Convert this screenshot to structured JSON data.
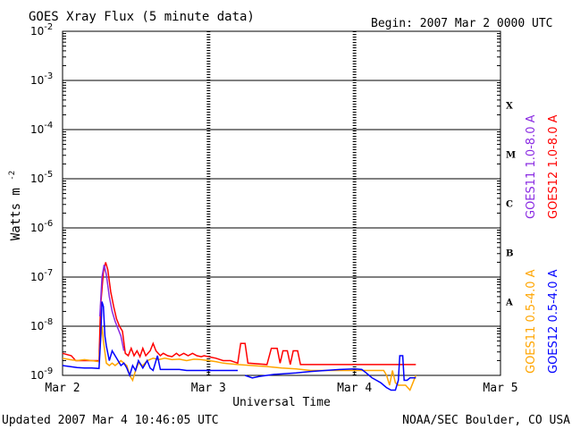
{
  "chart_data": {
    "type": "line",
    "title": "GOES Xray Flux (5 minute data)",
    "begin_label": "Begin:  2007 Mar 2 0000 UTC",
    "xlabel": "Universal Time",
    "ylabel": "Watts m",
    "ylabel_sup": "-2",
    "x_ticks": [
      "Mar 2",
      "Mar 3",
      "Mar 4",
      "Mar 5"
    ],
    "xlim_days": [
      0,
      3
    ],
    "ylim_log10": [
      -9,
      -2
    ],
    "y_ticks": [
      {
        "base": "10",
        "exp": "-2"
      },
      {
        "base": "10",
        "exp": "-3"
      },
      {
        "base": "10",
        "exp": "-4"
      },
      {
        "base": "10",
        "exp": "-5"
      },
      {
        "base": "10",
        "exp": "-6"
      },
      {
        "base": "10",
        "exp": "-7"
      },
      {
        "base": "10",
        "exp": "-8"
      },
      {
        "base": "10",
        "exp": "-9"
      }
    ],
    "flare_classes": [
      {
        "label": "X",
        "log10": -3.5
      },
      {
        "label": "M",
        "log10": -4.5
      },
      {
        "label": "C",
        "log10": -5.5
      },
      {
        "label": "B",
        "log10": -6.5
      },
      {
        "label": "A",
        "log10": -7.5
      }
    ],
    "legend": [
      {
        "name": "GOES11 1.0-8.0 A",
        "color": "#8a2be2"
      },
      {
        "name": "GOES12 1.0-8.0 A",
        "color": "#ff0000"
      },
      {
        "name": "GOES11 0.5-4.0 A",
        "color": "#ffa500"
      },
      {
        "name": "GOES12 0.5-4.0 A",
        "color": "#0000ff"
      }
    ],
    "series": [
      {
        "name": "GOES12 1.0-8.0 A",
        "color": "#ff0000",
        "points": [
          [
            0.0,
            -8.55
          ],
          [
            0.06,
            -8.6
          ],
          [
            0.09,
            -8.7
          ],
          [
            0.12,
            -8.7
          ],
          [
            0.25,
            -8.7
          ],
          [
            0.26,
            -7.6
          ],
          [
            0.28,
            -6.9
          ],
          [
            0.295,
            -6.7
          ],
          [
            0.31,
            -6.85
          ],
          [
            0.33,
            -7.3
          ],
          [
            0.35,
            -7.6
          ],
          [
            0.37,
            -7.85
          ],
          [
            0.39,
            -8.0
          ],
          [
            0.41,
            -8.1
          ],
          [
            0.43,
            -8.55
          ],
          [
            0.45,
            -8.6
          ],
          [
            0.47,
            -8.45
          ],
          [
            0.49,
            -8.6
          ],
          [
            0.51,
            -8.5
          ],
          [
            0.53,
            -8.62
          ],
          [
            0.55,
            -8.45
          ],
          [
            0.57,
            -8.6
          ],
          [
            0.6,
            -8.5
          ],
          [
            0.62,
            -8.35
          ],
          [
            0.64,
            -8.5
          ],
          [
            0.67,
            -8.6
          ],
          [
            0.69,
            -8.55
          ],
          [
            0.72,
            -8.6
          ],
          [
            0.75,
            -8.62
          ],
          [
            0.78,
            -8.55
          ],
          [
            0.8,
            -8.6
          ],
          [
            0.83,
            -8.55
          ],
          [
            0.86,
            -8.6
          ],
          [
            0.89,
            -8.55
          ],
          [
            0.92,
            -8.6
          ],
          [
            0.95,
            -8.62
          ],
          [
            0.97,
            -8.6
          ],
          [
            1.0,
            -8.62
          ],
          [
            1.05,
            -8.65
          ],
          [
            1.1,
            -8.7
          ],
          [
            1.15,
            -8.7
          ],
          [
            1.2,
            -8.75
          ],
          [
            1.22,
            -8.35
          ],
          [
            1.25,
            -8.35
          ],
          [
            1.27,
            -8.75
          ],
          [
            1.4,
            -8.78
          ],
          [
            1.43,
            -8.45
          ],
          [
            1.47,
            -8.45
          ],
          [
            1.49,
            -8.75
          ],
          [
            1.51,
            -8.5
          ],
          [
            1.54,
            -8.5
          ],
          [
            1.56,
            -8.78
          ],
          [
            1.58,
            -8.5
          ],
          [
            1.61,
            -8.5
          ],
          [
            1.63,
            -8.78
          ],
          [
            1.8,
            -8.78
          ],
          [
            2.0,
            -8.78
          ],
          [
            2.2,
            -8.78
          ],
          [
            2.42,
            -8.78
          ]
        ]
      },
      {
        "name": "GOES11 1.0-8.0 A",
        "color": "#8a2be2",
        "points": [
          [
            0.255,
            -7.8
          ],
          [
            0.27,
            -7.0
          ],
          [
            0.285,
            -6.75
          ],
          [
            0.3,
            -6.95
          ],
          [
            0.32,
            -7.4
          ],
          [
            0.34,
            -7.7
          ],
          [
            0.36,
            -7.9
          ],
          [
            0.38,
            -8.05
          ],
          [
            0.4,
            -8.2
          ],
          [
            0.42,
            -8.5
          ]
        ]
      },
      {
        "name": "GOES11 0.5-4.0 A",
        "color": "#ffa500",
        "points": [
          [
            0.0,
            -8.65
          ],
          [
            0.05,
            -8.68
          ],
          [
            0.1,
            -8.7
          ],
          [
            0.15,
            -8.68
          ],
          [
            0.2,
            -8.7
          ],
          [
            0.25,
            -8.72
          ],
          [
            0.26,
            -8.3
          ],
          [
            0.27,
            -8.0
          ],
          [
            0.28,
            -8.3
          ],
          [
            0.3,
            -8.75
          ],
          [
            0.32,
            -8.8
          ],
          [
            0.34,
            -8.75
          ],
          [
            0.36,
            -8.8
          ],
          [
            0.38,
            -8.75
          ],
          [
            0.4,
            -8.7
          ],
          [
            0.42,
            -8.75
          ],
          [
            0.44,
            -8.8
          ],
          [
            0.46,
            -9.0
          ],
          [
            0.48,
            -9.1
          ],
          [
            0.5,
            -8.9
          ],
          [
            0.52,
            -8.75
          ],
          [
            0.55,
            -8.8
          ],
          [
            0.58,
            -8.7
          ],
          [
            0.62,
            -8.65
          ],
          [
            0.66,
            -8.68
          ],
          [
            0.7,
            -8.65
          ],
          [
            0.75,
            -8.68
          ],
          [
            0.8,
            -8.67
          ],
          [
            0.85,
            -8.7
          ],
          [
            0.9,
            -8.67
          ],
          [
            0.95,
            -8.68
          ],
          [
            1.0,
            -8.7
          ],
          [
            1.05,
            -8.72
          ],
          [
            1.1,
            -8.75
          ],
          [
            1.2,
            -8.78
          ],
          [
            1.3,
            -8.8
          ],
          [
            1.4,
            -8.82
          ],
          [
            1.5,
            -8.85
          ],
          [
            1.6,
            -8.87
          ],
          [
            1.7,
            -8.9
          ],
          [
            1.8,
            -8.9
          ],
          [
            1.9,
            -8.9
          ],
          [
            2.0,
            -8.9
          ],
          [
            2.1,
            -8.9
          ],
          [
            2.2,
            -8.9
          ],
          [
            2.22,
            -9.0
          ],
          [
            2.24,
            -9.2
          ],
          [
            2.26,
            -8.9
          ],
          [
            2.28,
            -9.15
          ],
          [
            2.3,
            -9.2
          ],
          [
            2.35,
            -9.2
          ],
          [
            2.38,
            -9.3
          ],
          [
            2.4,
            -9.15
          ],
          [
            2.42,
            -9.0
          ]
        ]
      },
      {
        "name": "GOES12 0.5-4.0 A",
        "color": "#0000ff",
        "points": [
          [
            0.0,
            -8.8
          ],
          [
            0.05,
            -8.82
          ],
          [
            0.1,
            -8.84
          ],
          [
            0.15,
            -8.85
          ],
          [
            0.2,
            -8.85
          ],
          [
            0.25,
            -8.86
          ],
          [
            0.26,
            -8.3
          ],
          [
            0.27,
            -7.5
          ],
          [
            0.28,
            -7.6
          ],
          [
            0.29,
            -8.2
          ],
          [
            0.3,
            -8.4
          ],
          [
            0.32,
            -8.7
          ],
          [
            0.34,
            -8.5
          ],
          [
            0.36,
            -8.6
          ],
          [
            0.38,
            -8.7
          ],
          [
            0.4,
            -8.8
          ],
          [
            0.42,
            -8.75
          ],
          [
            0.44,
            -8.85
          ],
          [
            0.46,
            -9.0
          ],
          [
            0.48,
            -8.8
          ],
          [
            0.5,
            -8.9
          ],
          [
            0.52,
            -8.7
          ],
          [
            0.55,
            -8.85
          ],
          [
            0.58,
            -8.7
          ],
          [
            0.6,
            -8.85
          ],
          [
            0.62,
            -8.9
          ],
          [
            0.65,
            -8.6
          ],
          [
            0.67,
            -8.88
          ],
          [
            0.7,
            -8.88
          ],
          [
            0.75,
            -8.88
          ],
          [
            0.8,
            -8.88
          ],
          [
            0.85,
            -8.9
          ],
          [
            0.9,
            -8.9
          ],
          [
            0.95,
            -8.9
          ],
          [
            1.0,
            -8.9
          ],
          [
            1.05,
            -8.9
          ],
          [
            1.1,
            -8.9
          ],
          [
            1.15,
            -8.9
          ],
          [
            1.2,
            -8.9
          ]
        ]
      },
      {
        "name": "GOES12 0.5-4.0 A",
        "color": "#0000ff",
        "points": [
          [
            1.25,
            -9.0
          ],
          [
            1.3,
            -9.05
          ],
          [
            1.35,
            -9.02
          ],
          [
            1.4,
            -9.0
          ],
          [
            1.45,
            -8.98
          ],
          [
            1.5,
            -8.97
          ],
          [
            1.6,
            -8.95
          ],
          [
            1.7,
            -8.92
          ],
          [
            1.8,
            -8.9
          ],
          [
            1.9,
            -8.88
          ],
          [
            2.0,
            -8.87
          ],
          [
            2.05,
            -8.88
          ],
          [
            2.08,
            -8.95
          ],
          [
            2.1,
            -9.0
          ],
          [
            2.12,
            -9.05
          ],
          [
            2.15,
            -9.1
          ],
          [
            2.18,
            -9.15
          ],
          [
            2.2,
            -9.2
          ],
          [
            2.22,
            -9.25
          ],
          [
            2.25,
            -9.3
          ],
          [
            2.28,
            -9.3
          ],
          [
            2.3,
            -9.1
          ],
          [
            2.31,
            -8.6
          ],
          [
            2.33,
            -8.6
          ],
          [
            2.34,
            -9.1
          ],
          [
            2.36,
            -9.1
          ],
          [
            2.38,
            -9.05
          ],
          [
            2.4,
            -9.05
          ],
          [
            2.42,
            -9.05
          ]
        ]
      }
    ]
  },
  "footer": {
    "updated": "Updated 2007 Mar  4 10:46:05 UTC",
    "source": "NOAA/SEC Boulder, CO USA"
  }
}
